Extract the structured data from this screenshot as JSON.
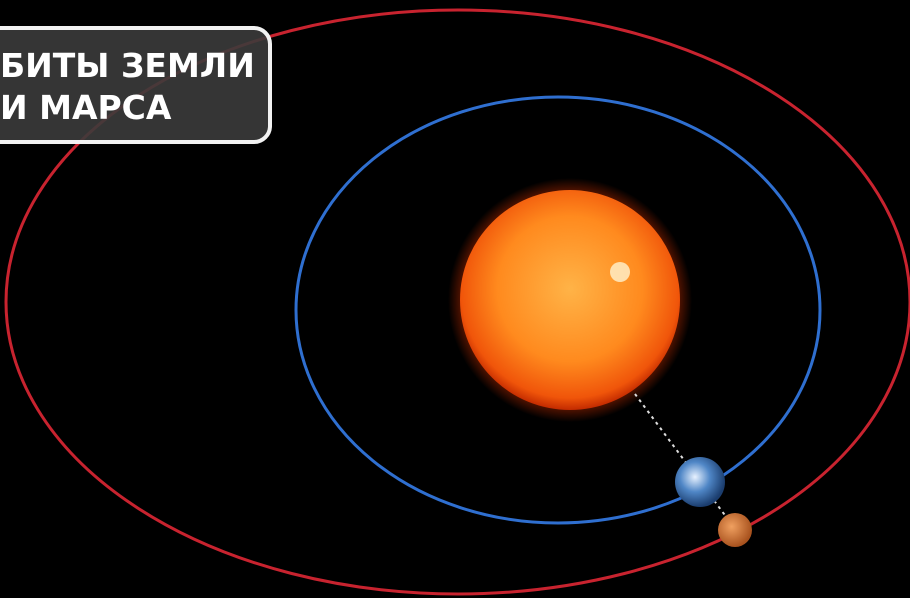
{
  "label": {
    "lines": [
      "БИТЫ ЗЕМЛИ",
      "И МАРСА"
    ]
  }
}
